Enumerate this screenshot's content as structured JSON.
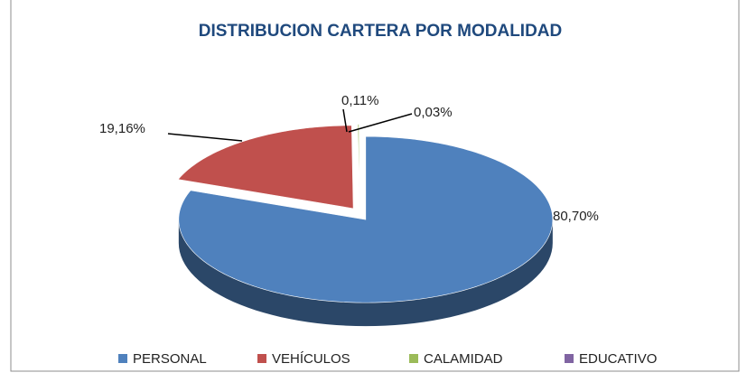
{
  "chart_data": {
    "type": "pie3d",
    "title": "DISTRIBUCION CARTERA POR MODALIDAD",
    "categories": [
      "PERSONAL",
      "VEHÍCULOS",
      "CALAMIDAD",
      "EDUCATIVO"
    ],
    "values": [
      80.7,
      19.16,
      0.11,
      0.03
    ],
    "value_labels": [
      "80,70%",
      "19,16%",
      "0,11%",
      "0,03%"
    ],
    "colors": [
      "#4f81bd",
      "#c0504d",
      "#9bbb59",
      "#8064a2"
    ],
    "legend": "bottom"
  }
}
